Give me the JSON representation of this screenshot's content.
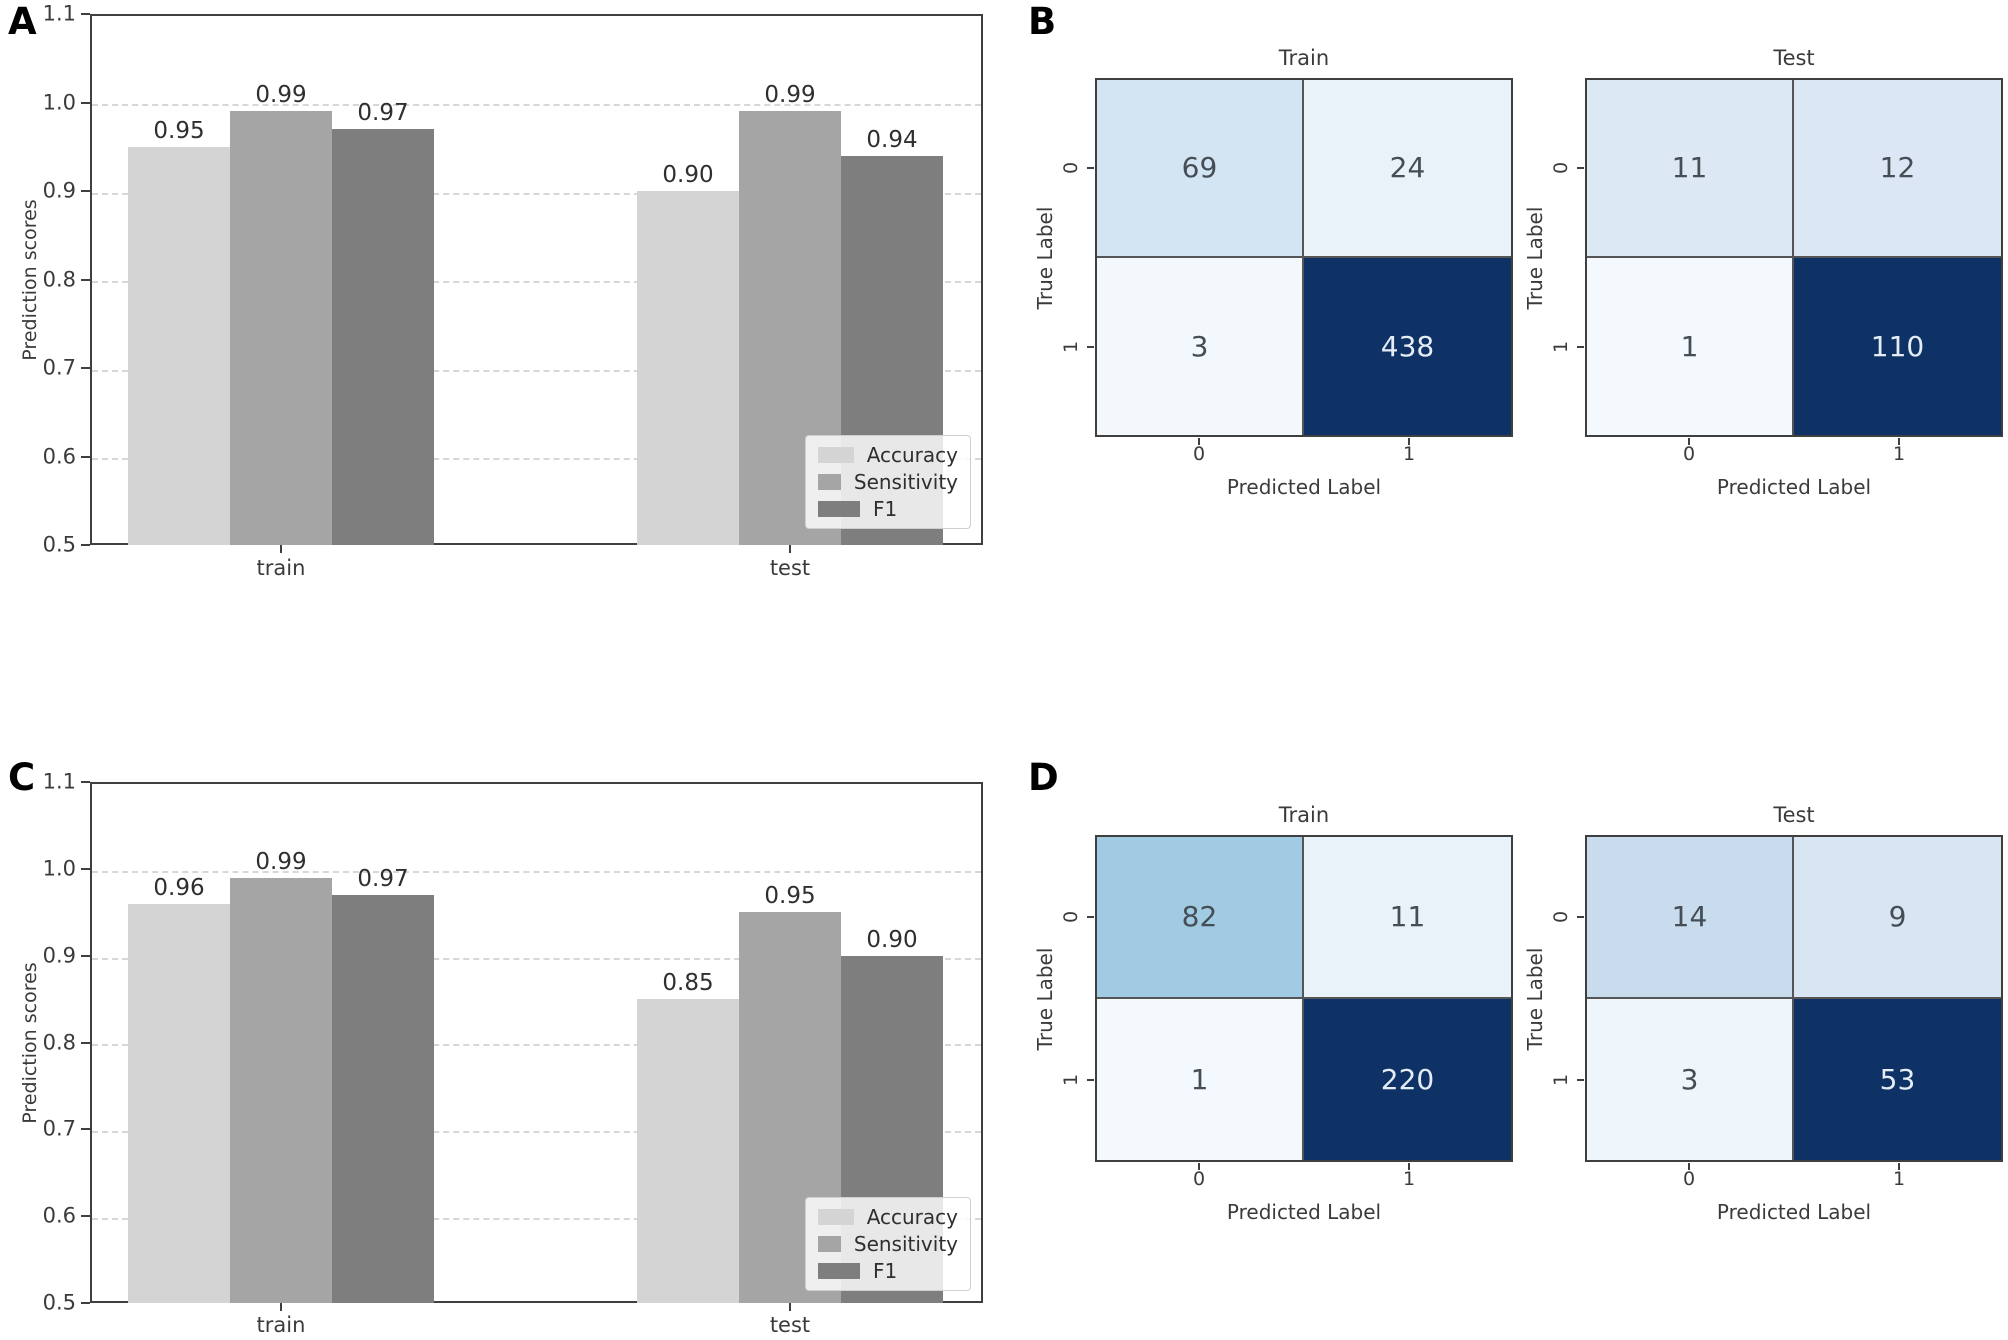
{
  "panel_labels": {
    "a": "A",
    "b": "B",
    "c": "C",
    "d": "D"
  },
  "chart_data": [
    {
      "panel": "A",
      "type": "bar",
      "categories": [
        "train",
        "test"
      ],
      "series": [
        {
          "name": "Accuracy",
          "values": [
            0.95,
            0.9
          ],
          "labels": [
            "0.95",
            "0.90"
          ]
        },
        {
          "name": "Sensitivity",
          "values": [
            0.99,
            0.99
          ],
          "labels": [
            "0.99",
            "0.99"
          ]
        },
        {
          "name": "F1",
          "values": [
            0.97,
            0.94
          ],
          "labels": [
            "0.97",
            "0.94"
          ]
        }
      ],
      "ylabel": "Prediction scores",
      "ylim": [
        0.5,
        1.1
      ],
      "yticks": [
        "1.1",
        "1.0",
        "0.9",
        "0.8",
        "0.7",
        "0.6",
        "0.5"
      ],
      "grid": "horizontal-dashed",
      "legend_position": "lower right",
      "colors": {
        "accuracy": "#d4d4d4",
        "sensitivity": "#a5a5a5",
        "f1": "#7e7e7e"
      }
    },
    {
      "panel": "B",
      "type": "heatmap",
      "title": "Train",
      "xlabel": "Predicted Label",
      "ylabel": "True Label",
      "xticklabels": [
        "0",
        "1"
      ],
      "yticklabels": [
        "0",
        "1"
      ],
      "values": [
        [
          69,
          24
        ],
        [
          3,
          438
        ]
      ],
      "labels": [
        [
          "69",
          "24"
        ],
        [
          "3",
          "438"
        ]
      ],
      "cell_colors": [
        [
          "#d3e4f3",
          "#e9f1f9"
        ],
        [
          "#f3f8fd",
          "#0e3266"
        ]
      ]
    },
    {
      "panel": "B",
      "type": "heatmap",
      "title": "Test",
      "xlabel": "Predicted Label",
      "ylabel": "True Label",
      "xticklabels": [
        "0",
        "1"
      ],
      "yticklabels": [
        "0",
        "1"
      ],
      "values": [
        [
          11,
          12
        ],
        [
          1,
          110
        ]
      ],
      "labels": [
        [
          "11",
          "12"
        ],
        [
          "1",
          "110"
        ]
      ],
      "cell_colors": [
        [
          "#dce8f4",
          "#dbe7f4"
        ],
        [
          "#f4f9fd",
          "#0e3266"
        ]
      ]
    },
    {
      "panel": "C",
      "type": "bar",
      "categories": [
        "train",
        "test"
      ],
      "series": [
        {
          "name": "Accuracy",
          "values": [
            0.96,
            0.85
          ],
          "labels": [
            "0.96",
            "0.85"
          ]
        },
        {
          "name": "Sensitivity",
          "values": [
            0.99,
            0.95
          ],
          "labels": [
            "0.99",
            "0.95"
          ]
        },
        {
          "name": "F1",
          "values": [
            0.97,
            0.9
          ],
          "labels": [
            "0.97",
            "0.90"
          ]
        }
      ],
      "ylabel": "Prediction scores",
      "ylim": [
        0.5,
        1.1
      ],
      "yticks": [
        "1.1",
        "1.0",
        "0.9",
        "0.8",
        "0.7",
        "0.6",
        "0.5"
      ],
      "grid": "horizontal-dashed",
      "legend_position": "lower right",
      "colors": {
        "accuracy": "#d4d4d4",
        "sensitivity": "#a5a5a5",
        "f1": "#7e7e7e"
      }
    },
    {
      "panel": "D",
      "type": "heatmap",
      "title": "Train",
      "xlabel": "Predicted Label",
      "ylabel": "True Label",
      "xticklabels": [
        "0",
        "1"
      ],
      "yticklabels": [
        "0",
        "1"
      ],
      "values": [
        [
          82,
          11
        ],
        [
          1,
          220
        ]
      ],
      "labels": [
        [
          "82",
          "11"
        ],
        [
          "1",
          "220"
        ]
      ],
      "cell_colors": [
        [
          "#a0cbe2",
          "#e9f1f9"
        ],
        [
          "#f4f9fd",
          "#0e3266"
        ]
      ]
    },
    {
      "panel": "D",
      "type": "heatmap",
      "title": "Test",
      "xlabel": "Predicted Label",
      "ylabel": "True Label",
      "xticklabels": [
        "0",
        "1"
      ],
      "yticklabels": [
        "0",
        "1"
      ],
      "values": [
        [
          14,
          9
        ],
        [
          3,
          53
        ]
      ],
      "labels": [
        [
          "14",
          "9"
        ],
        [
          "3",
          "53"
        ]
      ],
      "cell_colors": [
        [
          "#c9dcee",
          "#d8e6f3"
        ],
        [
          "#eef5fb",
          "#0e3266"
        ]
      ]
    }
  ]
}
